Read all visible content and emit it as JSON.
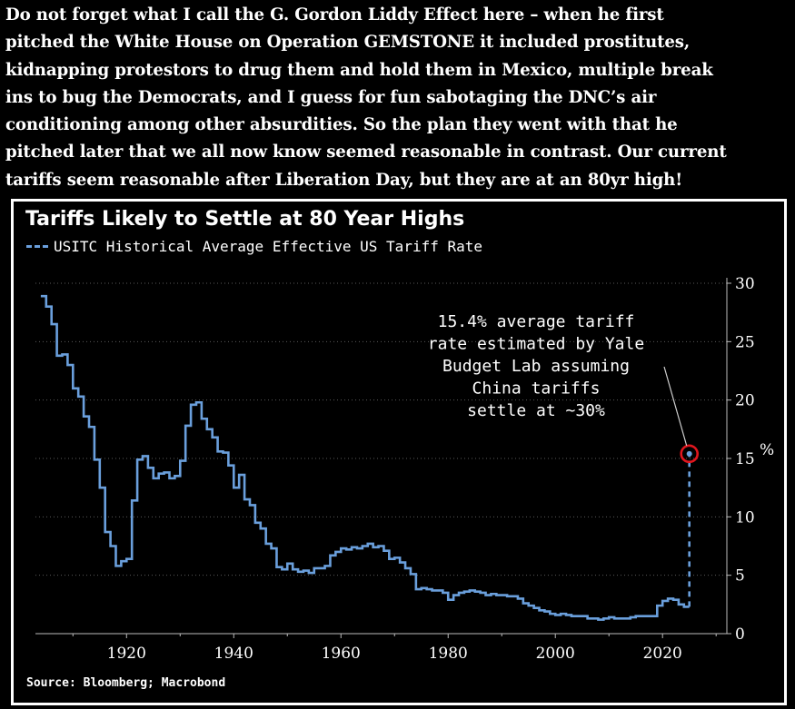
{
  "post": {
    "lines": [
      "Do not forget what I call the G. Gordon Liddy Effect here – when he first",
      "pitched the White House on Operation GEMSTONE it included prostitutes,",
      "kidnapping protestors to drug them and hold them in Mexico, multiple break",
      "ins to bug the Democrats, and I guess for fun sabotaging the DNC’s air",
      "conditioning among other absurdities. So the plan they went with that he",
      "pitched later that we all now know seemed reasonable in contrast. Our current",
      "tariffs seem reasonable after Liberation Day, but they are at an 80yr high!"
    ]
  },
  "chart_data": {
    "type": "line",
    "title": "Tariffs Likely to Settle at 80 Year Highs",
    "series": [
      {
        "name": "USITC Historical Average Effective US Tariff Rate",
        "color": "#6a9fdc",
        "x": [
          1904,
          1905,
          1906,
          1907,
          1908,
          1909,
          1910,
          1911,
          1912,
          1913,
          1914,
          1915,
          1916,
          1917,
          1918,
          1919,
          1920,
          1921,
          1922,
          1923,
          1924,
          1925,
          1926,
          1927,
          1928,
          1929,
          1930,
          1931,
          1932,
          1933,
          1934,
          1935,
          1936,
          1937,
          1938,
          1939,
          1940,
          1941,
          1942,
          1943,
          1944,
          1945,
          1946,
          1947,
          1948,
          1949,
          1950,
          1951,
          1952,
          1953,
          1954,
          1955,
          1956,
          1957,
          1958,
          1959,
          1960,
          1961,
          1962,
          1963,
          1964,
          1965,
          1966,
          1967,
          1968,
          1969,
          1970,
          1971,
          1972,
          1973,
          1974,
          1975,
          1976,
          1977,
          1978,
          1979,
          1980,
          1981,
          1982,
          1983,
          1984,
          1985,
          1986,
          1987,
          1988,
          1989,
          1990,
          1991,
          1992,
          1993,
          1994,
          1995,
          1996,
          1997,
          1998,
          1999,
          2000,
          2001,
          2002,
          2003,
          2004,
          2005,
          2006,
          2007,
          2008,
          2009,
          2010,
          2011,
          2012,
          2013,
          2014,
          2015,
          2016,
          2017,
          2018,
          2019,
          2020,
          2021,
          2022,
          2023,
          2024
        ],
        "values": [
          28.9,
          28.0,
          26.5,
          23.8,
          23.9,
          23.0,
          21.0,
          20.3,
          18.6,
          17.7,
          14.9,
          12.5,
          8.7,
          7.5,
          5.8,
          6.2,
          6.4,
          11.4,
          14.9,
          15.2,
          14.2,
          13.3,
          13.7,
          13.8,
          13.3,
          13.5,
          14.8,
          17.8,
          19.6,
          19.8,
          18.4,
          17.5,
          16.8,
          15.6,
          15.5,
          14.4,
          12.5,
          13.6,
          11.5,
          11.0,
          9.5,
          9.0,
          7.7,
          7.3,
          5.7,
          5.5,
          6.0,
          5.5,
          5.3,
          5.4,
          5.2,
          5.6,
          5.6,
          5.8,
          6.7,
          7.0,
          7.3,
          7.2,
          7.4,
          7.3,
          7.5,
          7.7,
          7.4,
          7.5,
          7.1,
          6.4,
          6.5,
          6.1,
          5.6,
          5.1,
          3.8,
          3.9,
          3.8,
          3.7,
          3.7,
          3.5,
          2.9,
          3.3,
          3.5,
          3.6,
          3.7,
          3.6,
          3.5,
          3.3,
          3.4,
          3.3,
          3.3,
          3.2,
          3.2,
          3.0,
          2.6,
          2.4,
          2.2,
          2.0,
          1.9,
          1.7,
          1.6,
          1.7,
          1.6,
          1.5,
          1.5,
          1.5,
          1.3,
          1.3,
          1.2,
          1.3,
          1.4,
          1.3,
          1.3,
          1.3,
          1.4,
          1.5,
          1.5,
          1.5,
          1.5,
          2.4,
          2.8,
          3.0,
          2.9,
          2.5,
          2.3
        ]
      },
      {
        "name": "",
        "style": "dashed",
        "x": [
          2025,
          2025
        ],
        "values": [
          2.3,
          15.4
        ]
      }
    ],
    "highlight_point": {
      "x": 2025,
      "y": 15.4,
      "marker_color": "#e0161e"
    },
    "annotation": {
      "lines": [
        "15.4% average tariff",
        "rate estimated by Yale",
        "Budget Lab assuming",
        "China tariffs",
        "settle at ~30%"
      ]
    },
    "xticks": [
      "1920",
      "1940",
      "1960",
      "1980",
      "2000",
      "2020"
    ],
    "yticks": [
      "0",
      "5",
      "10",
      "15",
      "20",
      "25",
      "30"
    ],
    "xlim": [
      1903,
      2032
    ],
    "ylim": [
      0,
      30
    ],
    "y_axis_side": "right",
    "grid": "horizontal dotted",
    "source": "Source: Bloomberg; Macrobond"
  }
}
